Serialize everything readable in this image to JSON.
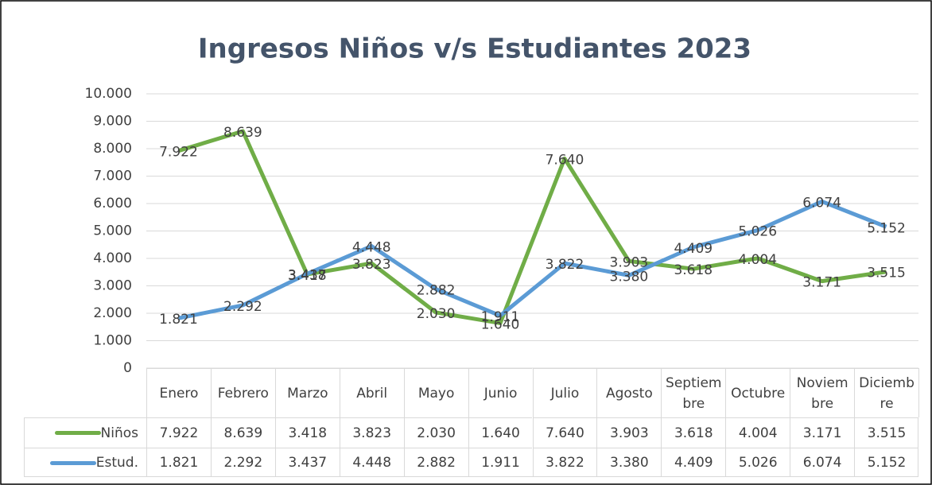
{
  "chart_data": {
    "type": "line",
    "title": "Ingresos Niños v/s Estudiantes 2023",
    "categories": [
      "Enero",
      "Febrero",
      "Marzo",
      "Abril",
      "Mayo",
      "Junio",
      "Julio",
      "Agosto",
      "Septiembre",
      "Octubre",
      "Noviembre",
      "Diciembre"
    ],
    "series": [
      {
        "name": "Niños",
        "color": "#70ad47",
        "values": [
          7922,
          8639,
          3418,
          3823,
          2030,
          1640,
          7640,
          3903,
          3618,
          4004,
          3171,
          3515
        ],
        "value_labels": [
          "7.922",
          "8.639",
          "3.418",
          "3.823",
          "2.030",
          "1.640",
          "7.640",
          "3.903",
          "3.618",
          "4.004",
          "3.171",
          "3.515"
        ]
      },
      {
        "name": "Estud.",
        "color": "#5b9bd5",
        "values": [
          1821,
          2292,
          3437,
          4448,
          2882,
          1911,
          3822,
          3380,
          4409,
          5026,
          6074,
          5152
        ],
        "value_labels": [
          "1.821",
          "2.292",
          "3.437",
          "4.448",
          "2.882",
          "1.911",
          "3.822",
          "3.380",
          "4.409",
          "5.026",
          "6.074",
          "5.152"
        ]
      }
    ],
    "ylim": [
      0,
      10000
    ],
    "yticks": [
      0,
      {
        "value": 1000,
        "label": "1.000"
      },
      {
        "value": 2000,
        "label": "2.000"
      },
      {
        "value": 3000,
        "label": "3.000"
      },
      {
        "value": 4000,
        "label": "4.000"
      },
      {
        "value": 5000,
        "label": "5.000"
      },
      {
        "value": 6000,
        "label": "6.000"
      },
      {
        "value": 7000,
        "label": "7.000"
      },
      {
        "value": 8000,
        "label": "8.000"
      },
      {
        "value": 9000,
        "label": "9.000"
      },
      {
        "value": 10000,
        "label": "10.000"
      }
    ],
    "grid": true
  }
}
